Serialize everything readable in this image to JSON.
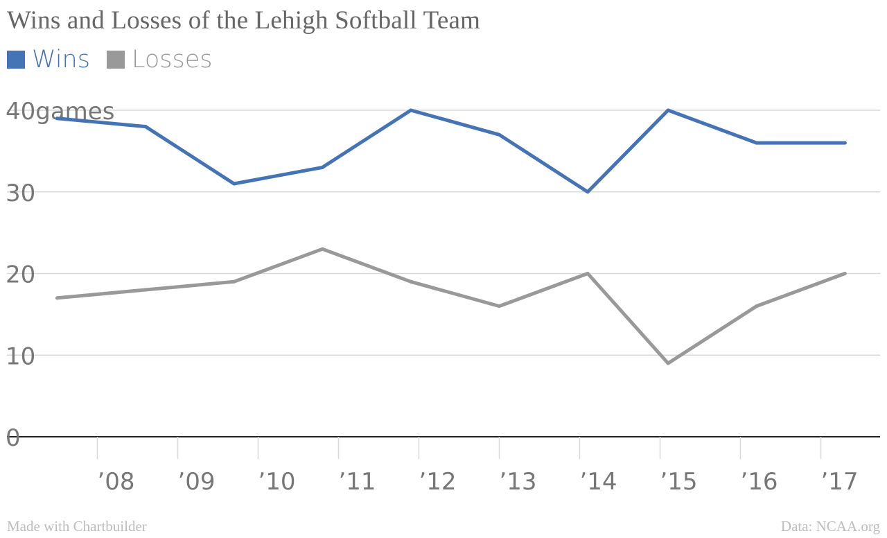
{
  "chart_data": {
    "type": "line",
    "title": "Wins and Losses of the Lehigh Softball Team",
    "ylabel": "games",
    "xlabel": "",
    "x": [
      2007.5,
      2008.6,
      2009.7,
      2010.8,
      2011.9,
      2013.0,
      2014.1,
      2015.1,
      2016.2,
      2017.3
    ],
    "series": [
      {
        "name": "Wins",
        "color": "#4574b6",
        "values": [
          39,
          38,
          31,
          33,
          40,
          37,
          30,
          40,
          36,
          36
        ]
      },
      {
        "name": "Losses",
        "color": "#999999",
        "values": [
          17,
          18,
          19,
          23,
          19,
          16,
          20,
          9,
          16,
          20
        ]
      }
    ],
    "xticks": [
      2008,
      2009,
      2010,
      2011,
      2012,
      2013,
      2014,
      2015,
      2016,
      2017
    ],
    "xtick_labels": [
      "’08",
      "’09",
      "’10",
      "’11",
      "’12",
      "’13",
      "’14",
      "’15",
      "’16",
      "’17"
    ],
    "yticks": [
      0,
      10,
      20,
      30,
      40
    ],
    "ytick_labels": [
      "0",
      "10",
      "20",
      "30",
      "40"
    ],
    "ylim": [
      0,
      40
    ],
    "grid": true,
    "legend": "top-left"
  },
  "footer": {
    "credit": "Made with Chartbuilder",
    "source": "Data: NCAA.org"
  }
}
